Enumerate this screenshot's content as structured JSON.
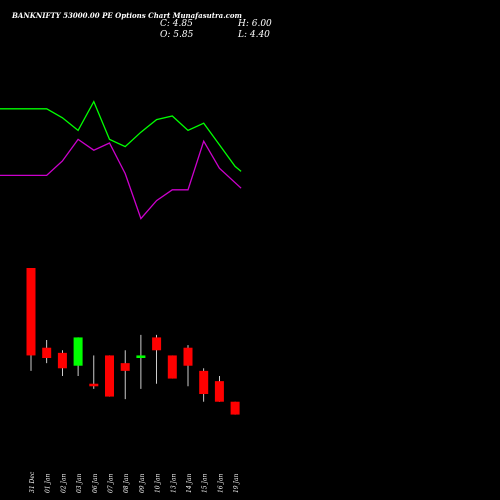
{
  "chart_data": {
    "type": "candlestick",
    "title": "BANKNIFTY 53000.00 PE Options Chart Munafasutra.com",
    "ohlc_summary": {
      "c_label": "C: 4.85",
      "h_label": "H: 6.00",
      "o_label": "O: 5.85",
      "l_label": "L: 4.40"
    },
    "categories": [
      "31 Dec",
      "01 Jan",
      "02 Jan",
      "03 Jan",
      "06 Jan",
      "07 Jan",
      "08 Jan",
      "09 Jan",
      "10 Jan",
      "13 Jan",
      "14 Jan",
      "15 Jan",
      "16 Jan",
      "19 Jan"
    ],
    "candles": [
      {
        "open": 63,
        "high": 63,
        "low": 23,
        "close": 29
      },
      {
        "open": 32,
        "high": 35,
        "low": 26,
        "close": 28
      },
      {
        "open": 30,
        "high": 31,
        "low": 21,
        "close": 24
      },
      {
        "open": 25,
        "high": 36,
        "low": 21,
        "close": 36
      },
      {
        "open": 18,
        "high": 29,
        "low": 16,
        "close": 17
      },
      {
        "open": 29,
        "high": 29,
        "low": 13,
        "close": 13
      },
      {
        "open": 26,
        "high": 31,
        "low": 12,
        "close": 23
      },
      {
        "open": 28,
        "high": 37,
        "low": 16,
        "close": 29
      },
      {
        "open": 36,
        "high": 37,
        "low": 18,
        "close": 31
      },
      {
        "open": 29,
        "high": 29,
        "low": 20,
        "close": 20
      },
      {
        "open": 32,
        "high": 33,
        "low": 17,
        "close": 25
      },
      {
        "open": 23,
        "high": 24,
        "low": 11,
        "close": 14
      },
      {
        "open": 19,
        "high": 21,
        "low": 11,
        "close": 11
      },
      {
        "open": 11,
        "high": 11,
        "low": 6,
        "close": 6
      }
    ],
    "ylim": [
      0,
      70
    ],
    "colors": {
      "up": "#00ff00",
      "down": "#ff0000",
      "wick": "#ffffff",
      "background": "#000000"
    },
    "indicator_lines": {
      "x": [
        "31 Dec",
        "01 Jan",
        "02 Jan",
        "03 Jan",
        "06 Jan",
        "07 Jan",
        "08 Jan",
        "09 Jan",
        "10 Jan",
        "13 Jan",
        "14 Jan",
        "15 Jan",
        "16 Jan",
        "19 Jan"
      ],
      "ylim": [
        0,
        100
      ],
      "series": [
        {
          "color": "#00ff00",
          "values": [
            84,
            84,
            79,
            72,
            88,
            67,
            63,
            71,
            78,
            80,
            72,
            76,
            64,
            52
          ]
        },
        {
          "color": "#cc00cc",
          "values": [
            47,
            47,
            55,
            67,
            61,
            65,
            48,
            23,
            33,
            39,
            39,
            66,
            51,
            null
          ]
        }
      ]
    }
  }
}
